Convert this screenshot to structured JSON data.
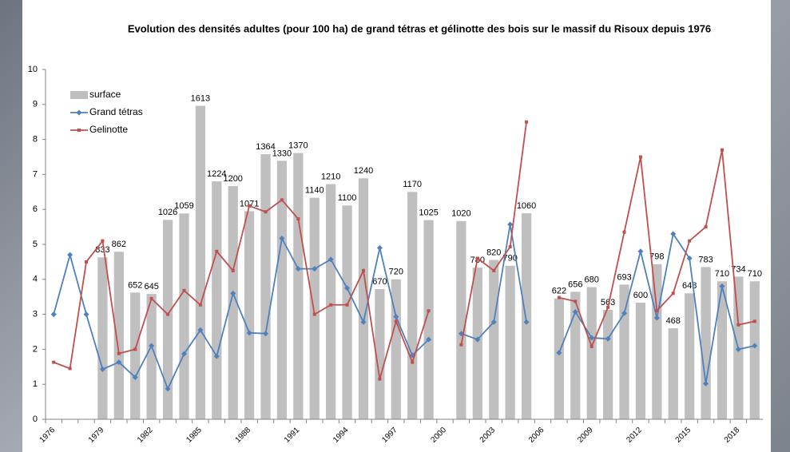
{
  "chart_data": {
    "type": "combo",
    "title": "Evolution des densités adultes (pour 100 ha) de grand tétras et gélinotte des bois sur le massif du Risoux depuis 1976",
    "categories": [
      "1976",
      null,
      null,
      "1979",
      null,
      null,
      "1982",
      null,
      null,
      "1985",
      null,
      null,
      "1988",
      null,
      null,
      "1991",
      null,
      null,
      "1994",
      null,
      null,
      "1997",
      null,
      null,
      "2000",
      null,
      null,
      "2003",
      null,
      null,
      "2006",
      null,
      null,
      "2009",
      null,
      null,
      "2012",
      null,
      null,
      "2015",
      null,
      null,
      "2018",
      null
    ],
    "ylim": [
      0,
      10
    ],
    "yticks": [
      0,
      1,
      2,
      3,
      4,
      5,
      6,
      7,
      8,
      9,
      10
    ],
    "y2lim": [
      0,
      1800
    ],
    "grid": false,
    "legend": "top-left",
    "series": [
      {
        "name": "surface",
        "type": "bar",
        "axis": "y2",
        "color": "#bfbfbf",
        "values": [
          null,
          null,
          null,
          833,
          862,
          652,
          645,
          1026,
          1059,
          1613,
          1224,
          1200,
          1071,
          1364,
          1330,
          1370,
          1140,
          1210,
          1100,
          1240,
          670,
          720,
          1170,
          1025,
          null,
          1020,
          780,
          820,
          790,
          1060,
          null,
          622,
          656,
          680,
          563,
          693,
          600,
          798,
          468,
          648,
          783,
          710,
          734,
          710
        ]
      },
      {
        "name": "Grand tétras",
        "type": "line",
        "marker": "diamond",
        "color": "#4f81bd",
        "values": [
          3.0,
          4.7,
          3.0,
          1.43,
          1.63,
          1.2,
          2.1,
          0.87,
          1.87,
          2.55,
          1.8,
          3.6,
          2.47,
          2.45,
          5.17,
          4.3,
          4.3,
          4.57,
          3.75,
          2.78,
          4.9,
          2.93,
          1.83,
          2.28,
          null,
          2.45,
          2.28,
          2.78,
          5.57,
          2.78,
          null,
          1.9,
          3.07,
          2.33,
          2.3,
          3.03,
          4.8,
          2.9,
          5.3,
          4.6,
          1.02,
          3.8,
          2.0,
          2.1
        ]
      },
      {
        "name": "Gelinotte",
        "type": "line",
        "marker": "square",
        "color": "#c0504d",
        "values": [
          1.63,
          1.45,
          4.5,
          5.1,
          1.88,
          2.0,
          3.45,
          3.0,
          3.68,
          3.27,
          4.8,
          4.25,
          6.1,
          5.93,
          6.27,
          5.73,
          3.0,
          3.27,
          3.27,
          4.25,
          1.15,
          2.8,
          1.63,
          3.1,
          null,
          2.13,
          4.6,
          4.25,
          4.93,
          8.5,
          null,
          3.48,
          3.37,
          2.08,
          3.2,
          5.35,
          7.5,
          3.1,
          3.6,
          5.1,
          5.5,
          7.7,
          2.7,
          2.8
        ]
      }
    ]
  }
}
